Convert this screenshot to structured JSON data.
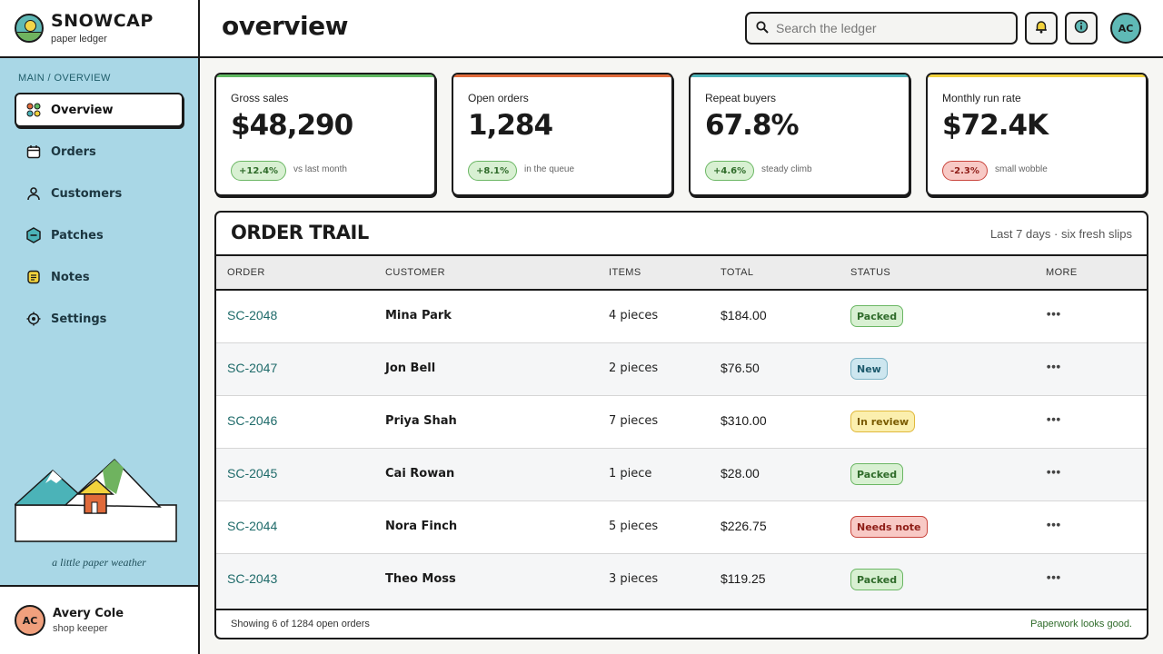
{
  "brand": {
    "name": "SNOWCAP",
    "subtitle": "paper ledger"
  },
  "sidebar": {
    "breadcrumb": "MAIN / OVERVIEW",
    "items": [
      {
        "label": "Overview",
        "icon": "grid-icon",
        "active": true
      },
      {
        "label": "Orders",
        "icon": "calendar-icon"
      },
      {
        "label": "Customers",
        "icon": "person-icon"
      },
      {
        "label": "Patches",
        "icon": "hexagon-icon"
      },
      {
        "label": "Notes",
        "icon": "note-icon"
      },
      {
        "label": "Settings",
        "icon": "gear-icon"
      }
    ],
    "tagline": "a little paper weather",
    "user": {
      "initials": "AC",
      "name": "Avery Cole",
      "role": "shop keeper"
    }
  },
  "header": {
    "title": "overview",
    "search_placeholder": "Search the ledger",
    "avatar_initials": "AC"
  },
  "stats": [
    {
      "label": "Gross sales",
      "value": "$48,290",
      "change": "+12.4%",
      "note": "vs last month",
      "trend": "up",
      "accent": "#5fb860"
    },
    {
      "label": "Open orders",
      "value": "1,284",
      "change": "+8.1%",
      "note": "in the queue",
      "trend": "up",
      "accent": "#e06a3a"
    },
    {
      "label": "Repeat buyers",
      "value": "67.8%",
      "change": "+4.6%",
      "note": "steady climb",
      "trend": "up",
      "accent": "#4bb3b8"
    },
    {
      "label": "Monthly run rate",
      "value": "$72.4K",
      "change": "-2.3%",
      "note": "small wobble",
      "trend": "down",
      "accent": "#f2d23c"
    }
  ],
  "orders": {
    "title": "ORDER TRAIL",
    "subtitle": "Last 7 days · six fresh slips",
    "columns": [
      "ORDER",
      "CUSTOMER",
      "ITEMS",
      "TOTAL",
      "STATUS",
      "MORE"
    ],
    "rows": [
      {
        "id": "SC-2048",
        "customer": "Mina Park",
        "items": "4 pieces",
        "total": "$184.00",
        "status": "Packed",
        "kind": "packed"
      },
      {
        "id": "SC-2047",
        "customer": "Jon Bell",
        "items": "2 pieces",
        "total": "$76.50",
        "status": "New",
        "kind": "new"
      },
      {
        "id": "SC-2046",
        "customer": "Priya Shah",
        "items": "7 pieces",
        "total": "$310.00",
        "status": "In review",
        "kind": "review"
      },
      {
        "id": "SC-2045",
        "customer": "Cai Rowan",
        "items": "1 piece",
        "total": "$28.00",
        "status": "Packed",
        "kind": "packed"
      },
      {
        "id": "SC-2044",
        "customer": "Nora Finch",
        "items": "5 pieces",
        "total": "$226.75",
        "status": "Needs note",
        "kind": "note"
      },
      {
        "id": "SC-2043",
        "customer": "Theo Moss",
        "items": "3 pieces",
        "total": "$119.25",
        "status": "Packed",
        "kind": "packed"
      }
    ],
    "footer_left": "Showing 6 of 1284 open orders",
    "footer_right": "Paperwork looks good."
  }
}
